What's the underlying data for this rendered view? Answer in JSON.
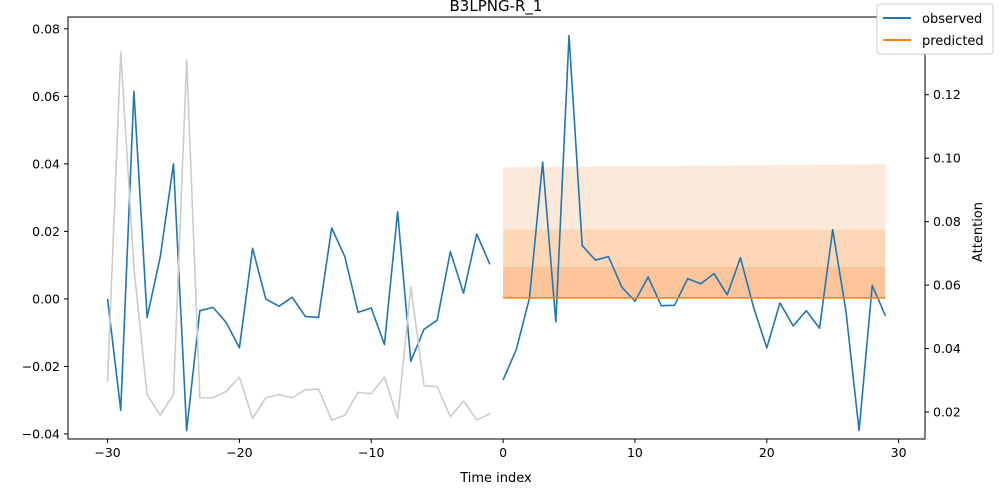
{
  "chart_data": {
    "type": "line",
    "title": "B3LPNG-R_1",
    "xlabel": "Time index",
    "ylabel": "",
    "y2label": "Attention",
    "xlim": [
      -33,
      32
    ],
    "ylim": [
      -0.0415,
      0.0835
    ],
    "y2lim": [
      0.0115,
      0.1445
    ],
    "x_ticks": [
      -30,
      -20,
      -10,
      0,
      10,
      20,
      30
    ],
    "x_tick_labels": [
      "−30",
      "−20",
      "−10",
      "0",
      "10",
      "20",
      "30"
    ],
    "y_ticks": [
      -0.04,
      -0.02,
      0.0,
      0.02,
      0.04,
      0.06,
      0.08
    ],
    "y_tick_labels": [
      "−0.04",
      "−0.02",
      "0.00",
      "0.02",
      "0.04",
      "0.06",
      "0.08"
    ],
    "y2_ticks": [
      0.02,
      0.04,
      0.06,
      0.08,
      0.1,
      0.12
    ],
    "y2_tick_labels": [
      "0.02",
      "0.04",
      "0.06",
      "0.08",
      "0.10",
      "0.12"
    ],
    "legend": {
      "position": "top-right",
      "entries": [
        "observed",
        "predicted"
      ]
    },
    "colors": {
      "observed": "#1f77b4",
      "predicted": "#ff7f0e",
      "attention": "#cccccc",
      "band_outer": "#fde9d9",
      "band_mid": "#fed7b7",
      "band_inner": "#fdc49a"
    },
    "series": [
      {
        "name": "observed",
        "axis": "left",
        "x": [
          -30,
          -29,
          -28,
          -27,
          -26,
          -25,
          -24,
          -23,
          -22,
          -21,
          -20,
          -19,
          -18,
          -17,
          -16,
          -15,
          -14,
          -13,
          -12,
          -11,
          -10,
          -9,
          -8,
          -7,
          -6,
          -5,
          -4,
          -3,
          -2,
          -1
        ],
        "values": [
          0.0,
          -0.033,
          0.0615,
          -0.0055,
          0.0125,
          0.04,
          -0.039,
          -0.0035,
          -0.0025,
          -0.007,
          -0.0145,
          0.015,
          0.0,
          -0.0022,
          0.0005,
          -0.0052,
          -0.0055,
          0.021,
          0.0125,
          -0.004,
          -0.0027,
          -0.0135,
          0.0258,
          -0.0185,
          -0.009,
          -0.0063,
          0.014,
          0.0017,
          0.0192,
          0.0102
        ]
      },
      {
        "name": "observed",
        "axis": "left",
        "x": [
          0,
          1,
          2,
          3,
          4,
          5,
          6,
          7,
          8,
          9,
          10,
          11,
          12,
          13,
          14,
          15,
          16,
          17,
          18,
          19,
          20,
          21,
          22,
          23,
          24,
          25,
          26,
          27,
          28,
          29
        ],
        "values": [
          -0.024,
          -0.015,
          0.0002,
          0.0405,
          -0.0068,
          0.078,
          0.0158,
          0.0115,
          0.0125,
          0.0035,
          -0.0007,
          0.0065,
          -0.002,
          -0.0019,
          0.006,
          0.0045,
          0.0075,
          0.0012,
          0.0122,
          -0.0025,
          -0.0145,
          -0.0012,
          -0.008,
          -0.0035,
          -0.0087,
          0.0205,
          -0.0035,
          -0.039,
          0.004,
          -0.005
        ]
      },
      {
        "name": "predicted",
        "axis": "left",
        "x": [
          0,
          29
        ],
        "values": [
          0.0003,
          0.0003
        ]
      },
      {
        "axis": "right",
        "x": [
          -30,
          -29,
          -28,
          -27,
          -26,
          -25,
          -24,
          -23,
          -22,
          -21,
          -20,
          -19,
          -18,
          -17,
          -16,
          -15,
          -14,
          -13,
          -12,
          -11,
          -10,
          -9,
          -8,
          -7,
          -6,
          -5,
          -4,
          -3,
          -2,
          -1
        ],
        "values": [
          0.0295,
          0.1335,
          0.0655,
          0.0255,
          0.019,
          0.0255,
          0.131,
          0.0245,
          0.0245,
          0.0265,
          0.031,
          0.018,
          0.0245,
          0.0255,
          0.0245,
          0.027,
          0.0272,
          0.0175,
          0.019,
          0.0262,
          0.0258,
          0.031,
          0.018,
          0.0595,
          0.0283,
          0.028,
          0.0185,
          0.0235,
          0.0175,
          0.0195
        ]
      }
    ],
    "bands": [
      {
        "level": "outer",
        "x": [
          0,
          29
        ],
        "lower": [
          0.0003,
          0.0003
        ],
        "upper": [
          0.039,
          0.0399
        ]
      },
      {
        "level": "mid",
        "x": [
          0,
          29
        ],
        "lower": [
          0.0003,
          0.0003
        ],
        "upper": [
          0.0205,
          0.0205
        ]
      },
      {
        "level": "inner",
        "x": [
          0,
          29
        ],
        "lower": [
          0.0003,
          0.0003
        ],
        "upper": [
          0.0095,
          0.0095
        ]
      }
    ]
  }
}
